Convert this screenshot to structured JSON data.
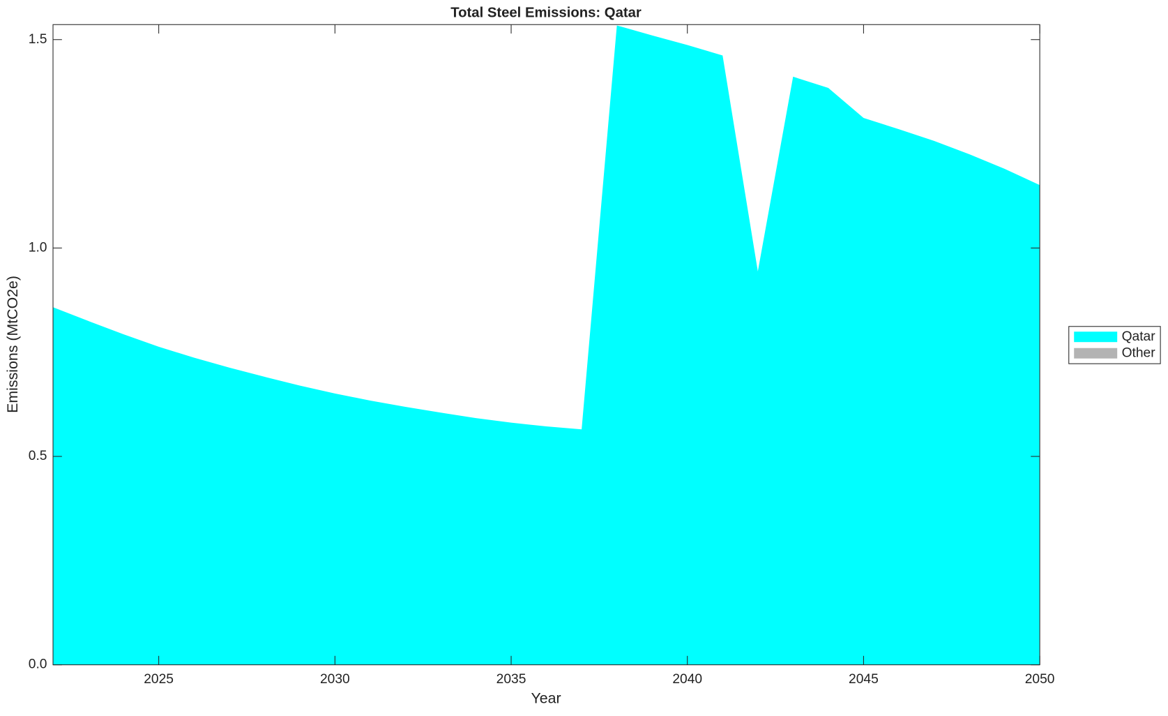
{
  "chart_data": {
    "type": "stacked-area",
    "title": "Total Steel Emissions: Qatar",
    "x_label": "Year",
    "y_label": "Emissions (MtCO2e)",
    "x": [
      2022,
      2023,
      2024,
      2025,
      2026,
      2027,
      2028,
      2029,
      2030,
      2031,
      2032,
      2033,
      2034,
      2035,
      2036,
      2037,
      2038,
      2039,
      2040,
      2041,
      2042,
      2043,
      2044,
      2045,
      2046,
      2047,
      2048,
      2049,
      2050
    ],
    "series": [
      {
        "name": "Qatar",
        "color": "#00ffff",
        "values": [
          0.858,
          0.825,
          0.793,
          0.763,
          0.737,
          0.713,
          0.691,
          0.67,
          0.651,
          0.634,
          0.619,
          0.605,
          0.592,
          0.581,
          0.572,
          0.565,
          1.534,
          1.51,
          1.487,
          1.462,
          0.944,
          1.411,
          1.384,
          1.312,
          1.285,
          1.257,
          1.225,
          1.19,
          1.151
        ]
      },
      {
        "name": "Other",
        "color": "#b3b3b3",
        "values": [
          0,
          0,
          0,
          0,
          0,
          0,
          0,
          0,
          0,
          0,
          0,
          0,
          0,
          0,
          0,
          0,
          0,
          0,
          0,
          0,
          0,
          0,
          0,
          0,
          0,
          0,
          0,
          0,
          0
        ]
      }
    ],
    "xlim": [
      2022,
      2050
    ],
    "xticks": [
      2025,
      2030,
      2035,
      2040,
      2045,
      2050
    ],
    "ylim": [
      0,
      1.536
    ],
    "yticks": [
      {
        "value": 0,
        "label": "0.0"
      },
      {
        "value": 0.5,
        "label": "0.5"
      },
      {
        "value": 1,
        "label": "1.0"
      },
      {
        "value": 1.5,
        "label": "1.5"
      }
    ],
    "legend": "right"
  }
}
